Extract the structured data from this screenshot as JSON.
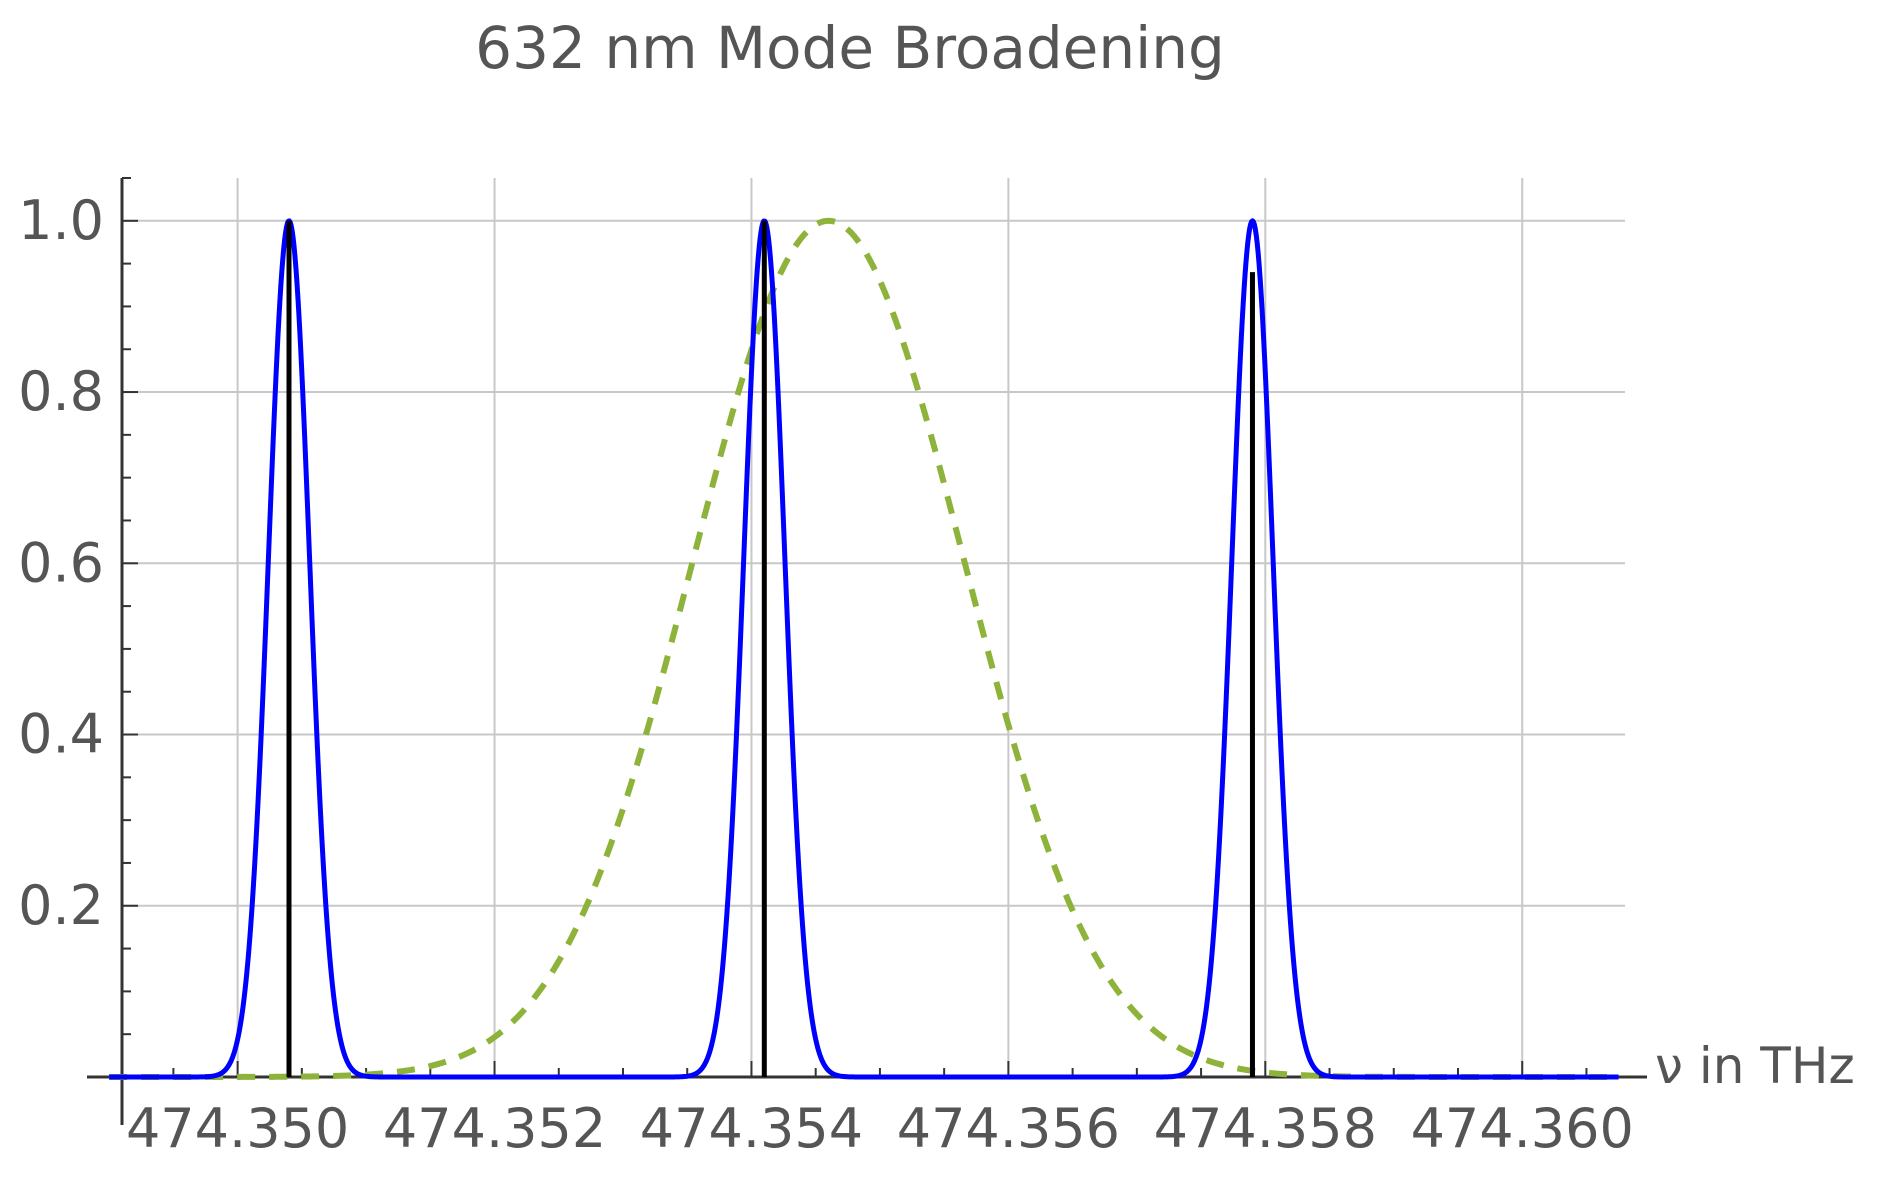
{
  "chart_data": {
    "type": "line",
    "title": "632 nm Mode Broadening",
    "xlabel": "ν in THz",
    "ylabel": "",
    "xlim": [
      474.3491,
      474.3608
    ],
    "ylim": [
      0,
      1.05
    ],
    "grid": true,
    "x_ticks": [
      474.35,
      474.352,
      474.354,
      474.356,
      474.358,
      474.36
    ],
    "x_tick_labels": [
      "474.350",
      "474.352",
      "474.354",
      "474.356",
      "474.358",
      "474.360"
    ],
    "y_ticks": [
      0.2,
      0.4,
      0.6,
      0.8,
      1.0
    ],
    "y_tick_labels": [
      "0.2",
      "0.4",
      "0.6",
      "0.8",
      "1.0"
    ],
    "series": [
      {
        "kind": "gaussian",
        "style": "dashed",
        "color": "#8db33a",
        "center": 474.3546,
        "sigma": 0.00105,
        "amplitude": 1.0
      },
      {
        "kind": "gaussian-peaks",
        "style": "solid",
        "color": "#0000ff",
        "centers": [
          474.3504,
          474.3541,
          474.3579
        ],
        "sigma": 0.00016,
        "amplitude": 1.0
      },
      {
        "kind": "stems",
        "style": "solid",
        "color": "#000000",
        "x": [
          474.3504,
          474.3541,
          474.3579
        ],
        "y": [
          1.0,
          1.0,
          0.94
        ]
      }
    ],
    "colors": {
      "gridline": "#c8c8c8",
      "axis": "#333333",
      "text": "#555555"
    }
  }
}
